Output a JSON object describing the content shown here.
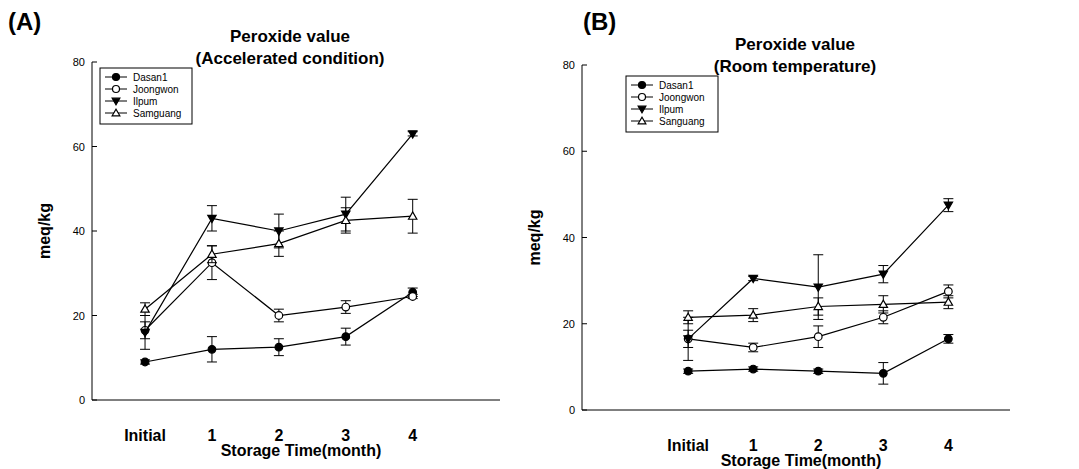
{
  "chart_data": [
    {
      "type": "line",
      "annotations": [
        "(A)"
      ],
      "title": "Peroxide value",
      "subtitle": "(Accelerated condition)",
      "x_label": "Storage Time(month)",
      "y_label": "meq/kg",
      "categories": [
        "Initial",
        "1",
        "2",
        "3",
        "4"
      ],
      "ylim": [
        0,
        80
      ],
      "yticks": [
        0,
        20,
        40,
        60,
        80
      ],
      "grid": false,
      "legend": "upper left",
      "series": [
        {
          "name": "Dasan1",
          "color": "#000000",
          "marker": "filled-circle",
          "values": [
            9,
            12,
            12.5,
            15,
            25.5
          ],
          "errors": [
            0.5,
            3,
            2,
            2,
            1
          ]
        },
        {
          "name": "Joongwon",
          "color": "#000000",
          "marker": "open-circle",
          "values": [
            16.5,
            32.5,
            20,
            22,
            24.5
          ],
          "errors": [
            2,
            4,
            1.5,
            1.5,
            0.5
          ]
        },
        {
          "name": "Ilpum",
          "color": "#000000",
          "marker": "filled-triangle-down",
          "values": [
            16,
            43,
            40,
            44,
            63
          ],
          "errors": [
            4,
            3,
            4,
            4,
            0.5
          ]
        },
        {
          "name": "Samguang",
          "color": "#000000",
          "marker": "open-triangle-up",
          "values": [
            21.5,
            34.5,
            37,
            42.5,
            43.5
          ],
          "errors": [
            1.5,
            2,
            3,
            3,
            4
          ]
        }
      ]
    },
    {
      "type": "line",
      "annotations": [
        "(B)"
      ],
      "title": "Peroxide value",
      "subtitle": "(Room temperature)",
      "x_label": "Storage Time(month)",
      "y_label": "meq/kg",
      "categories": [
        "Initial",
        "1",
        "2",
        "3",
        "4"
      ],
      "ylim": [
        0,
        80
      ],
      "yticks": [
        0,
        20,
        40,
        60,
        80
      ],
      "grid": false,
      "legend": "upper left",
      "series": [
        {
          "name": "Dasan1",
          "color": "#000000",
          "marker": "filled-circle",
          "values": [
            9,
            9.5,
            9,
            8.5,
            16.5
          ],
          "errors": [
            0.5,
            0.5,
            0.5,
            2.5,
            1
          ]
        },
        {
          "name": "Joongwon",
          "color": "#000000",
          "marker": "open-circle",
          "values": [
            16.5,
            14.5,
            17,
            21.5,
            27.5
          ],
          "errors": [
            2,
            1,
            2.5,
            1.5,
            1.5
          ]
        },
        {
          "name": "Ilpum",
          "color": "#000000",
          "marker": "filled-triangle-down",
          "values": [
            16.5,
            30.5,
            28.5,
            31.5,
            47.5
          ],
          "errors": [
            5,
            0.5,
            7.5,
            2,
            1.5
          ]
        },
        {
          "name": "Sanguang",
          "color": "#000000",
          "marker": "open-triangle-up",
          "values": [
            21.5,
            22,
            24,
            24.5,
            25
          ],
          "errors": [
            1.5,
            1.5,
            2,
            2,
            1.5
          ]
        }
      ]
    }
  ]
}
